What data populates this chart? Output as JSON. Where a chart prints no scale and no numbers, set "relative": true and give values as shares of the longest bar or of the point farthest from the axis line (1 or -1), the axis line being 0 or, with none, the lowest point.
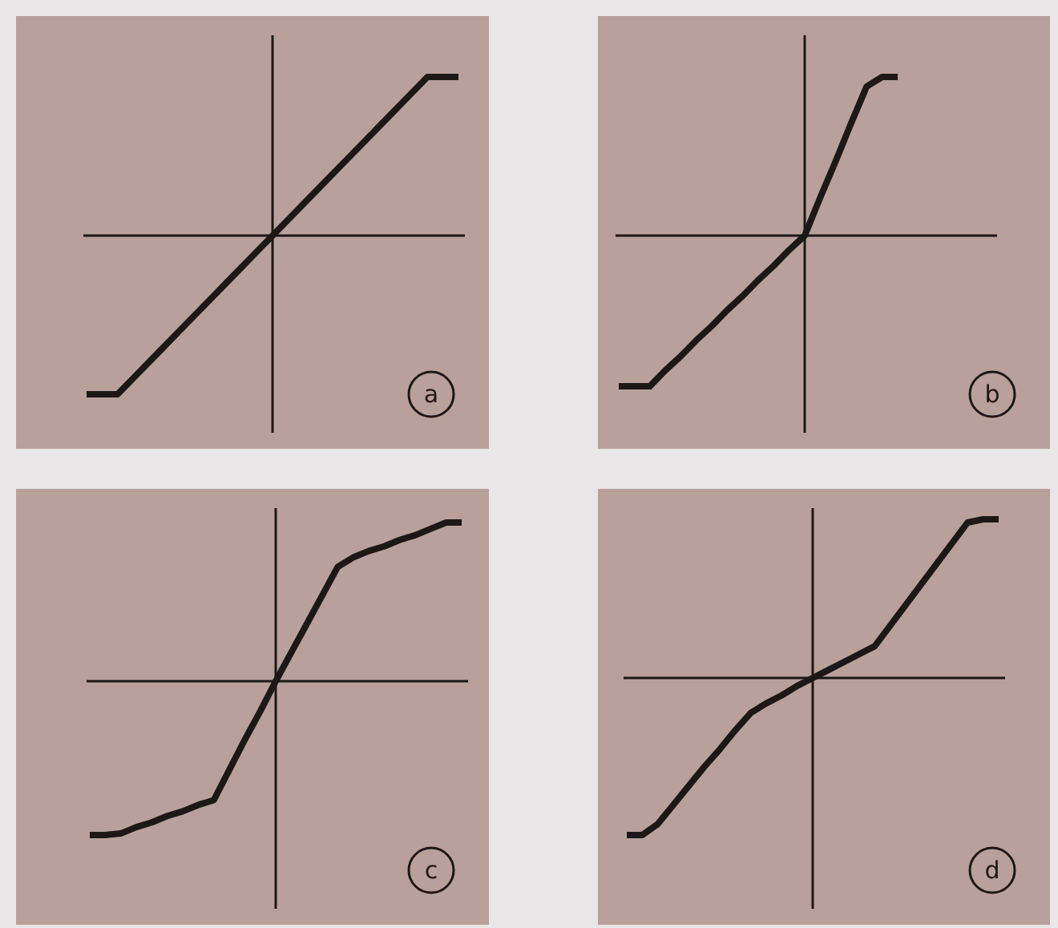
{
  "chart_data": [
    {
      "type": "line",
      "title": "a",
      "relative": true,
      "categories": [
        null,
        null,
        null,
        null,
        null,
        null,
        null,
        null,
        null,
        null,
        null,
        null,
        null,
        null,
        null,
        null,
        null,
        null,
        null,
        null,
        null,
        null,
        null,
        null,
        null
      ],
      "series": [
        {
          "color": "#1c1818",
          "values": [
            -1,
            -1,
            -1,
            -0.9,
            -0.8,
            -0.7,
            -0.6,
            -0.5,
            -0.4,
            -0.3,
            -0.2,
            -0.1,
            0,
            0.1,
            0.2,
            0.3,
            0.4,
            0.5,
            0.6,
            0.7,
            0.8,
            0.9,
            1,
            1,
            1
          ]
        }
      ]
    },
    {
      "type": "line",
      "title": "b",
      "relative": true,
      "categories": [
        null,
        null,
        null,
        null,
        null,
        null,
        null,
        null,
        null,
        null,
        null,
        null,
        null,
        null,
        null,
        null,
        null,
        null,
        null,
        null,
        null,
        null,
        null,
        null,
        null
      ],
      "series": [
        {
          "color": "#1c1818",
          "values": [
            -0.95,
            -0.95,
            -0.95,
            -0.85,
            -0.76,
            -0.66,
            -0.57,
            -0.47,
            -0.38,
            -0.28,
            -0.19,
            -0.09,
            0,
            0.24,
            0.47,
            0.71,
            0.94,
            1,
            1,
            null,
            null,
            null,
            null,
            null,
            null
          ]
        }
      ]
    },
    {
      "type": "line",
      "title": "c",
      "relative": true,
      "categories": [
        null,
        null,
        null,
        null,
        null,
        null,
        null,
        null,
        null,
        null,
        null,
        null,
        null,
        null,
        null,
        null,
        null,
        null,
        null,
        null,
        null,
        null,
        null,
        null,
        null
      ],
      "series": [
        {
          "color": "#1c1818",
          "values": [
            -0.97,
            -0.97,
            -0.96,
            -0.92,
            -0.89,
            -0.85,
            -0.82,
            -0.78,
            -0.75,
            -0.56,
            -0.37,
            -0.19,
            0,
            0.18,
            0.36,
            0.54,
            0.72,
            0.78,
            0.82,
            0.85,
            0.89,
            0.92,
            0.96,
            1,
            1
          ]
        }
      ]
    },
    {
      "type": "line",
      "title": "d",
      "relative": true,
      "categories": [
        null,
        null,
        null,
        null,
        null,
        null,
        null,
        null,
        null,
        null,
        null,
        null,
        null,
        null,
        null,
        null,
        null,
        null,
        null,
        null,
        null,
        null,
        null,
        null,
        null
      ],
      "series": [
        {
          "color": "#1c1818",
          "values": [
            -0.99,
            -0.99,
            -0.92,
            -0.8,
            -0.68,
            -0.56,
            -0.45,
            -0.33,
            -0.22,
            -0.16,
            -0.11,
            -0.05,
            0,
            0.05,
            0.1,
            0.15,
            0.2,
            0.33,
            0.46,
            0.59,
            0.72,
            0.85,
            0.98,
            1,
            1
          ]
        }
      ]
    }
  ]
}
